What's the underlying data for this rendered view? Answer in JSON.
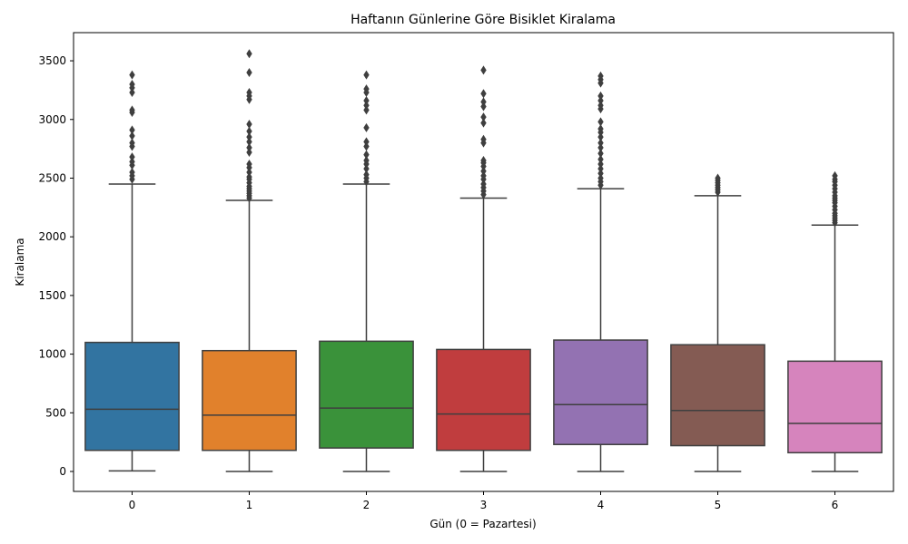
{
  "chart_data": {
    "type": "box",
    "title": "Haftanın Günlerine Göre Bisiklet Kiralama",
    "xlabel": "Gün (0 = Pazartesi)",
    "ylabel": "Kiralama",
    "ylim": [
      -170,
      3740
    ],
    "yticks": [
      0,
      500,
      1000,
      1500,
      2000,
      2500,
      3000,
      3500
    ],
    "grid": false,
    "legend": "none",
    "categories": [
      "0",
      "1",
      "2",
      "3",
      "4",
      "5",
      "6"
    ],
    "colors": [
      "#3274a1",
      "#e1812c",
      "#3a923a",
      "#c03d3e",
      "#9372b2",
      "#845b53",
      "#d684bd"
    ],
    "boxes": [
      {
        "category": "0",
        "whisker_low": 5,
        "q1": 180,
        "median": 530,
        "q3": 1100,
        "whisker_high": 2450,
        "outliers": [
          2490,
          2520,
          2550,
          2610,
          2640,
          2680,
          2770,
          2800,
          2860,
          2910,
          3060,
          3080,
          3230,
          3270,
          3300,
          3380
        ]
      },
      {
        "category": "1",
        "whisker_low": 0,
        "q1": 180,
        "median": 480,
        "q3": 1030,
        "whisker_high": 2310,
        "outliers": [
          2330,
          2350,
          2370,
          2390,
          2410,
          2430,
          2460,
          2490,
          2510,
          2550,
          2590,
          2620,
          2720,
          2760,
          2810,
          2850,
          2900,
          2960,
          3170,
          3200,
          3230,
          3400,
          3560
        ]
      },
      {
        "category": "2",
        "whisker_low": 0,
        "q1": 200,
        "median": 540,
        "q3": 1110,
        "whisker_high": 2450,
        "outliers": [
          2470,
          2500,
          2530,
          2580,
          2620,
          2650,
          2700,
          2770,
          2810,
          2930,
          3080,
          3120,
          3160,
          3230,
          3260,
          3380
        ]
      },
      {
        "category": "3",
        "whisker_low": 0,
        "q1": 180,
        "median": 490,
        "q3": 1040,
        "whisker_high": 2330,
        "outliers": [
          2360,
          2390,
          2420,
          2450,
          2490,
          2520,
          2560,
          2600,
          2630,
          2650,
          2800,
          2830,
          2970,
          3020,
          3110,
          3150,
          3220,
          3420
        ]
      },
      {
        "category": "4",
        "whisker_low": 0,
        "q1": 230,
        "median": 570,
        "q3": 1120,
        "whisker_high": 2410,
        "outliers": [
          2440,
          2470,
          2500,
          2540,
          2580,
          2620,
          2660,
          2710,
          2760,
          2800,
          2850,
          2890,
          2920,
          2980,
          3090,
          3120,
          3160,
          3200,
          3310,
          3340,
          3370
        ]
      },
      {
        "category": "5",
        "whisker_low": 0,
        "q1": 220,
        "median": 520,
        "q3": 1080,
        "whisker_high": 2350,
        "outliers": [
          2380,
          2400,
          2420,
          2440,
          2460,
          2480,
          2500
        ]
      },
      {
        "category": "6",
        "whisker_low": 0,
        "q1": 160,
        "median": 410,
        "q3": 940,
        "whisker_high": 2100,
        "outliers": [
          2120,
          2140,
          2160,
          2180,
          2200,
          2230,
          2260,
          2290,
          2310,
          2330,
          2350,
          2380,
          2410,
          2440,
          2470,
          2490,
          2520
        ]
      }
    ]
  }
}
